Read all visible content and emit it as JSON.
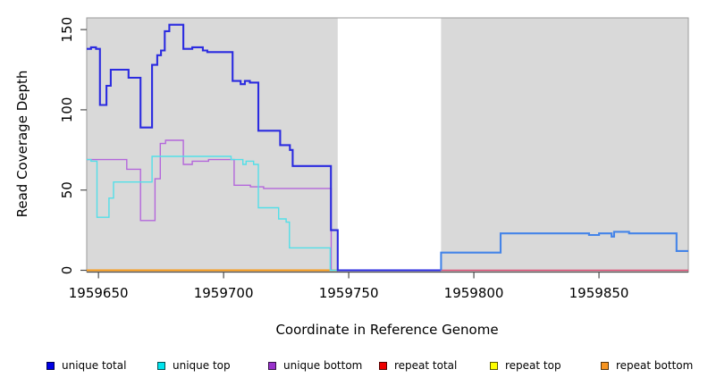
{
  "chart": {
    "title": "",
    "y_axis_label": "Read Coverage Depth",
    "x_axis_label": "Coordinate in Reference Genome"
  },
  "legend": {
    "items": [
      {
        "label": "unique total",
        "swatch_color": "#0000E6"
      },
      {
        "label": "unique top",
        "swatch_color": "#00E5EE"
      },
      {
        "label": "unique bottom",
        "swatch_color": "#9932CC"
      },
      {
        "label": "repeat total",
        "swatch_color": "#EE0000"
      },
      {
        "label": "repeat top",
        "swatch_color": "#FFFF00"
      },
      {
        "label": "repeat bottom",
        "swatch_color": "#F79420"
      }
    ]
  },
  "chart_data": {
    "type": "line",
    "subtype": "step-after-coverage",
    "title": "",
    "xlabel": "Coordinate in Reference Genome",
    "ylabel": "Read Coverage Depth",
    "xlim": [
      1959645.3,
      1959885.7
    ],
    "ylim": [
      0,
      157.3
    ],
    "grid": false,
    "legend_position": "bottom",
    "x_ticks": [
      {
        "value": 1959650,
        "label": "1959650"
      },
      {
        "value": 1959700,
        "label": "1959700"
      },
      {
        "value": 1959750,
        "label": "1959750"
      },
      {
        "value": 1959800,
        "label": "1959800"
      },
      {
        "value": 1959850,
        "label": "1959850"
      }
    ],
    "y_ticks": [
      {
        "value": 0,
        "label": "0"
      },
      {
        "value": 50,
        "label": "50"
      },
      {
        "value": 100,
        "label": "100"
      },
      {
        "value": 150,
        "label": "150"
      }
    ],
    "background": {
      "plot_fill": "#FFFFFF",
      "region_fill": "#D9D9D9",
      "border_color": "#9A9A9A",
      "axis_color": "#4D4D4D",
      "shaded_regions": [
        {
          "x0": 1959645.3,
          "x1": 1959745.6
        },
        {
          "x0": 1959786.9,
          "x1": 1959885.7
        }
      ]
    },
    "series": [
      {
        "name": "repeat top",
        "color": "#FFFF00",
        "lw": 1.5,
        "points": [],
        "x_end": null
      },
      {
        "name": "repeat total",
        "color": "#DC4D73",
        "lw": 1.6,
        "points": [
          [
            1959786.9,
            0
          ]
        ],
        "x_end": 1959885.7
      },
      {
        "name": "repeat bottom",
        "color": "#F89C1B",
        "lw": 2,
        "points": [
          [
            1959645.3,
            0
          ]
        ],
        "x_end": 1959745.6
      },
      {
        "name": "unique bottom",
        "color": "#B467DB",
        "lw": 1.4,
        "points": [
          [
            1959645.3,
            69
          ],
          [
            1959661.3,
            63
          ],
          [
            1959666.8,
            31
          ],
          [
            1959672.6,
            57
          ],
          [
            1959674.7,
            79
          ],
          [
            1959676.8,
            81
          ],
          [
            1959683.9,
            66
          ],
          [
            1959687.5,
            68
          ],
          [
            1959694,
            69
          ],
          [
            1959704.2,
            53
          ],
          [
            1959710.7,
            52
          ],
          [
            1959716,
            51
          ],
          [
            1959743,
            0
          ]
        ],
        "x_end": 1959743.6
      },
      {
        "name": "unique top",
        "color": "#53DFE8",
        "lw": 1.4,
        "points": [
          [
            1959645.3,
            69
          ],
          [
            1959647,
            68
          ],
          [
            1959649.4,
            33
          ],
          [
            1959654.2,
            45
          ],
          [
            1959656,
            55
          ],
          [
            1959671.4,
            71
          ],
          [
            1959703,
            69
          ],
          [
            1959707.7,
            66
          ],
          [
            1959709,
            68
          ],
          [
            1959712,
            66
          ],
          [
            1959713.9,
            39
          ],
          [
            1959722,
            32
          ],
          [
            1959725,
            30
          ],
          [
            1959726.3,
            14
          ],
          [
            1959742.6,
            0
          ]
        ],
        "x_end": 1959745.6
      },
      {
        "name": "unique total",
        "color": "#2B2BE0",
        "color2": "#4484E8",
        "split_x": 1959786.9,
        "lw": 2.1,
        "points": [
          [
            1959645.3,
            138
          ],
          [
            1959647,
            139
          ],
          [
            1959649,
            138
          ],
          [
            1959650.6,
            103
          ],
          [
            1959653.2,
            115
          ],
          [
            1959654.9,
            125
          ],
          [
            1959662,
            120
          ],
          [
            1959666.8,
            89
          ],
          [
            1959671.4,
            128
          ],
          [
            1959673.5,
            134
          ],
          [
            1959675,
            137
          ],
          [
            1959676.5,
            149
          ],
          [
            1959678.3,
            153
          ],
          [
            1959683.9,
            138
          ],
          [
            1959687.5,
            139
          ],
          [
            1959691.7,
            137
          ],
          [
            1959693.5,
            136
          ],
          [
            1959703.6,
            118
          ],
          [
            1959706.8,
            116
          ],
          [
            1959708.5,
            118
          ],
          [
            1959710.5,
            117
          ],
          [
            1959713.9,
            87
          ],
          [
            1959722.6,
            78
          ],
          [
            1959726.5,
            75
          ],
          [
            1959727.6,
            65
          ],
          [
            1959742.9,
            25
          ],
          [
            1959745.6,
            0
          ],
          [
            1959786.9,
            11
          ],
          [
            1959810.7,
            23
          ],
          [
            1959846,
            22
          ],
          [
            1959850,
            23
          ],
          [
            1959855,
            21
          ],
          [
            1959856,
            24
          ],
          [
            1959862,
            23
          ],
          [
            1959881,
            12
          ]
        ],
        "x_end": 1959885.7
      }
    ]
  }
}
